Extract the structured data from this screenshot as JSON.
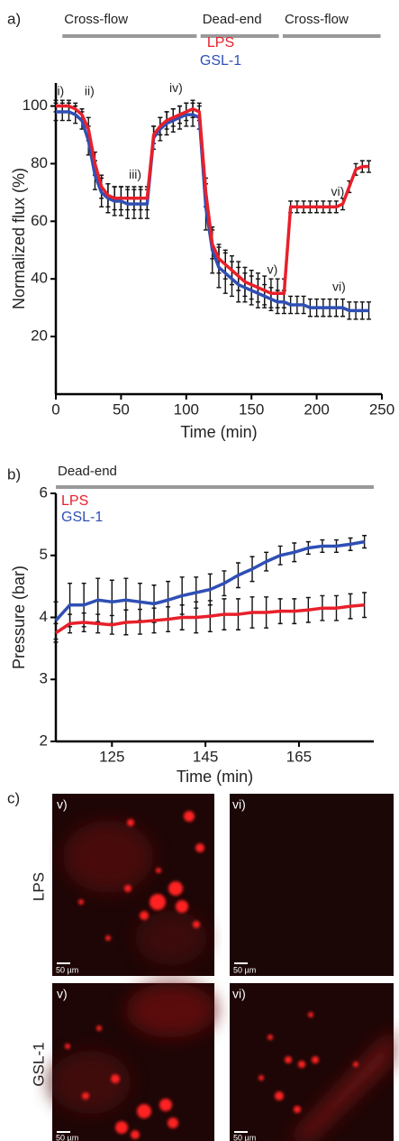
{
  "chart_data": [
    {
      "type": "line",
      "label": "a)",
      "xlabel": "Time (min)",
      "ylabel": "Normalized flux (%)",
      "phases": [
        {
          "label": "Cross-flow",
          "start": 5,
          "end": 108
        },
        {
          "label": "Dead-end",
          "start": 111,
          "end": 171
        },
        {
          "label": "Cross-flow",
          "start": 174,
          "end": 249
        }
      ],
      "x": [
        0,
        5,
        10,
        15,
        20,
        25,
        30,
        35,
        40,
        45,
        50,
        55,
        60,
        65,
        70,
        75,
        80,
        85,
        90,
        95,
        100,
        105,
        110,
        115,
        120,
        125,
        130,
        135,
        140,
        145,
        150,
        155,
        160,
        165,
        170,
        175,
        180,
        185,
        190,
        195,
        200,
        205,
        210,
        215,
        220,
        225,
        230,
        235,
        240
      ],
      "series": [
        {
          "name": "LPS",
          "color": "#e8202a",
          "values": [
            100,
            100,
            100,
            99,
            97,
            92,
            80,
            72,
            69,
            68,
            68,
            68,
            68,
            68,
            68,
            90,
            93,
            95,
            96,
            97,
            98,
            99,
            98,
            70,
            52,
            47,
            45,
            43,
            41,
            39,
            38,
            37,
            36,
            35,
            35,
            35,
            65,
            65,
            65,
            65,
            65,
            65,
            65,
            65,
            66,
            72,
            78,
            79,
            79
          ],
          "errors": [
            2,
            2,
            2,
            2,
            2,
            4,
            4,
            4,
            4,
            4,
            4,
            4,
            4,
            4,
            4,
            3,
            3,
            3,
            3,
            3,
            3,
            3,
            3,
            5,
            5,
            5,
            5,
            5,
            5,
            5,
            5,
            5,
            5,
            5,
            5,
            5,
            2,
            2,
            2,
            2,
            2,
            2,
            2,
            2,
            2,
            2,
            2,
            2,
            2
          ]
        },
        {
          "name": "GSL-1",
          "color": "#2f4fb5",
          "values": [
            98,
            98,
            98,
            97,
            95,
            88,
            76,
            70,
            68,
            67,
            67,
            66,
            66,
            66,
            66,
            89,
            92,
            94,
            95,
            96,
            97,
            97,
            96,
            65,
            50,
            44,
            42,
            40,
            38,
            37,
            36,
            35,
            34,
            33,
            32,
            32,
            31,
            31,
            31,
            30,
            30,
            30,
            30,
            30,
            30,
            29,
            29,
            29,
            29
          ],
          "errors": [
            3,
            3,
            3,
            3,
            3,
            5,
            5,
            5,
            5,
            5,
            5,
            5,
            5,
            5,
            5,
            4,
            4,
            4,
            4,
            4,
            4,
            4,
            4,
            8,
            8,
            7,
            7,
            6,
            6,
            5,
            5,
            5,
            4,
            4,
            4,
            4,
            3,
            3,
            3,
            3,
            3,
            3,
            3,
            3,
            3,
            3,
            3,
            3,
            3
          ]
        }
      ],
      "xlim": [
        0,
        250
      ],
      "xticks": [
        0,
        50,
        100,
        150,
        200,
        250
      ],
      "ylim": [
        0,
        108
      ],
      "yticks": [
        20,
        40,
        60,
        80,
        100
      ],
      "annotations": [
        {
          "text": "i)",
          "x": 1,
          "y": 105
        },
        {
          "text": "ii)",
          "x": 22,
          "y": 105
        },
        {
          "text": "iii)",
          "x": 56,
          "y": 76
        },
        {
          "text": "iv)",
          "x": 87,
          "y": 106
        },
        {
          "text": "v)",
          "x": 162,
          "y": 43
        },
        {
          "text": "vi)",
          "x": 211,
          "y": 70
        },
        {
          "text": "vi)",
          "x": 212,
          "y": 37
        }
      ]
    },
    {
      "type": "line",
      "label": "b)",
      "xlabel": "Time (min)",
      "ylabel": "Pressure (bar)",
      "phases": [
        {
          "label": "Dead-end",
          "start": 113,
          "end": 181
        }
      ],
      "x": [
        113,
        116,
        119,
        122,
        125,
        128,
        131,
        134,
        137,
        140,
        143,
        146,
        149,
        152,
        155,
        158,
        161,
        164,
        167,
        170,
        173,
        176,
        179
      ],
      "series": [
        {
          "name": "LPS",
          "color": "#e8202a",
          "values": [
            3.75,
            3.9,
            3.92,
            3.9,
            3.88,
            3.92,
            3.93,
            3.95,
            3.97,
            4.0,
            4.0,
            4.02,
            4.05,
            4.05,
            4.08,
            4.08,
            4.1,
            4.1,
            4.12,
            4.15,
            4.15,
            4.18,
            4.2
          ],
          "errors": [
            0.15,
            0.15,
            0.15,
            0.15,
            0.15,
            0.2,
            0.2,
            0.2,
            0.2,
            0.2,
            0.25,
            0.25,
            0.25,
            0.25,
            0.25,
            0.25,
            0.2,
            0.2,
            0.2,
            0.2,
            0.2,
            0.2,
            0.2
          ]
        },
        {
          "name": "GSL-1",
          "color": "#2f4fb5",
          "values": [
            3.95,
            4.2,
            4.2,
            4.28,
            4.25,
            4.28,
            4.25,
            4.22,
            4.28,
            4.35,
            4.4,
            4.45,
            4.55,
            4.68,
            4.78,
            4.9,
            5.0,
            5.05,
            5.12,
            5.15,
            5.15,
            5.18,
            5.22
          ],
          "errors": [
            0.3,
            0.35,
            0.35,
            0.35,
            0.35,
            0.35,
            0.3,
            0.3,
            0.3,
            0.3,
            0.25,
            0.25,
            0.2,
            0.2,
            0.2,
            0.15,
            0.15,
            0.15,
            0.1,
            0.1,
            0.1,
            0.1,
            0.1
          ]
        }
      ],
      "xlim": [
        113,
        181
      ],
      "xticks": [
        125,
        145,
        165
      ],
      "ylim": [
        2,
        6
      ],
      "yticks": [
        2,
        3,
        4,
        5,
        6
      ]
    }
  ],
  "micrographs": {
    "label": "c)",
    "rows": [
      {
        "label": "LPS",
        "panels": [
          {
            "label": "v)",
            "scale_bar": "50 µm"
          },
          {
            "label": "vi)",
            "scale_bar": "50 µm"
          }
        ]
      },
      {
        "label": "GSL-1",
        "panels": [
          {
            "label": "v)",
            "scale_bar": "50 µm"
          },
          {
            "label": "vi)",
            "scale_bar": "50 µm"
          }
        ]
      }
    ]
  }
}
